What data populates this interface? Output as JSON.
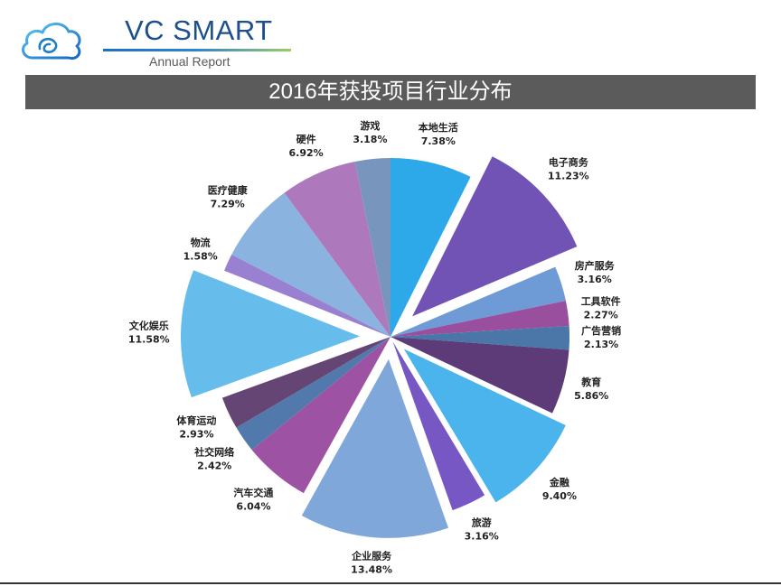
{
  "logo": {
    "icon": "cloud-logo-icon",
    "brand": "VC SMART",
    "tagline": "Annual Report"
  },
  "theme": {
    "brand_color": "#1d4f8e",
    "title_bar_color": "#5b5b5b",
    "label_color": "#222222"
  },
  "chart_data": {
    "type": "pie",
    "title": "2016年获投项目行业分布",
    "slices": [
      {
        "label": "本地生活",
        "value": 7.38,
        "value_label": "7.38%",
        "color": "#2da8e8",
        "exploded": false
      },
      {
        "label": "电子商务",
        "value": 11.23,
        "value_label": "11.23%",
        "color": "#7152b5",
        "exploded": true
      },
      {
        "label": "房产服务",
        "value": 3.16,
        "value_label": "3.16%",
        "color": "#6e9ad6",
        "exploded": false
      },
      {
        "label": "工具软件",
        "value": 2.27,
        "value_label": "2.27%",
        "color": "#9a4e9e",
        "exploded": false
      },
      {
        "label": "广告营销",
        "value": 2.13,
        "value_label": "2.13%",
        "color": "#4a77a8",
        "exploded": false
      },
      {
        "label": "教育",
        "value": 5.86,
        "value_label": "5.86%",
        "color": "#5d3a78",
        "exploded": false
      },
      {
        "label": "金融",
        "value": 9.4,
        "value_label": "9.40%",
        "color": "#4cb4ec",
        "exploded": true
      },
      {
        "label": "旅游",
        "value": 3.16,
        "value_label": "3.16%",
        "color": "#7657c4",
        "exploded": true
      },
      {
        "label": "企业服务",
        "value": 13.48,
        "value_label": "13.48%",
        "color": "#80a7da",
        "exploded": true
      },
      {
        "label": "汽车交通",
        "value": 6.04,
        "value_label": "6.04%",
        "color": "#9e52a4",
        "exploded": false
      },
      {
        "label": "社交网络",
        "value": 2.42,
        "value_label": "2.42%",
        "color": "#5279ab",
        "exploded": false
      },
      {
        "label": "体育运动",
        "value": 2.93,
        "value_label": "2.93%",
        "color": "#654573",
        "exploded": false
      },
      {
        "label": "文化娱乐",
        "value": 11.58,
        "value_label": "11.58%",
        "color": "#66bdeb",
        "exploded": true
      },
      {
        "label": "物流",
        "value": 1.58,
        "value_label": "1.58%",
        "color": "#9a80d0",
        "exploded": false
      },
      {
        "label": "医疗健康",
        "value": 7.29,
        "value_label": "7.29%",
        "color": "#8bb3e0",
        "exploded": false
      },
      {
        "label": "硬件",
        "value": 6.92,
        "value_label": "6.92%",
        "color": "#ae78bc",
        "exploded": false
      },
      {
        "label": "游戏",
        "value": 3.18,
        "value_label": "3.18%",
        "color": "#7896bd",
        "exploded": false
      }
    ]
  }
}
